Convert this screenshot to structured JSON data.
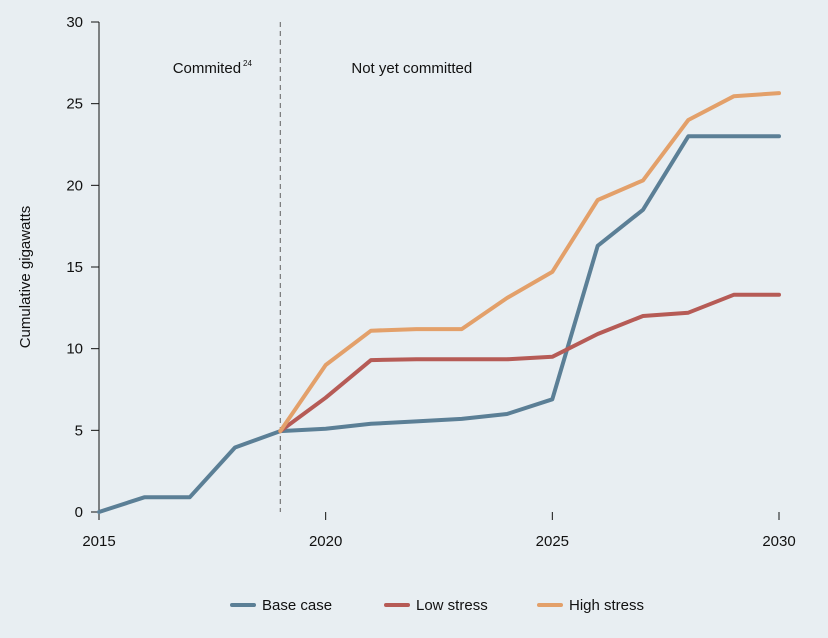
{
  "chart_data": {
    "type": "line",
    "title": "",
    "xlabel": "",
    "ylabel": "Cumulative gigawatts",
    "xlim": [
      2015,
      2030
    ],
    "ylim": [
      0,
      30
    ],
    "x_ticks": [
      "2015",
      "2020",
      "2025",
      "2030"
    ],
    "y_ticks": [
      "0",
      "5",
      "10",
      "15",
      "20",
      "25",
      "30"
    ],
    "grid": false,
    "legend_position": "bottom",
    "divider_x": 2019,
    "annotations": [
      {
        "label": "Commited",
        "superscript": "24",
        "x": 2017.5
      },
      {
        "label": "Not yet committed",
        "x": 2021.9
      }
    ],
    "series": [
      {
        "name": "Base case",
        "color": "#5b7f96",
        "x": [
          2015,
          2016,
          2017,
          2018,
          2019,
          2020,
          2021,
          2022,
          2023,
          2024,
          2025,
          2026,
          2027,
          2028,
          2029,
          2030
        ],
        "values": [
          0,
          0.9,
          0.9,
          3.95,
          4.95,
          5.1,
          5.4,
          5.55,
          5.7,
          6.0,
          6.9,
          16.3,
          18.5,
          23.0,
          23.0,
          23.0
        ]
      },
      {
        "name": "Low stress",
        "color": "#b65b56",
        "x": [
          2019,
          2020,
          2021,
          2022,
          2023,
          2024,
          2025,
          2026,
          2027,
          2028,
          2029,
          2030
        ],
        "values": [
          4.95,
          7.0,
          9.3,
          9.35,
          9.35,
          9.35,
          9.5,
          10.9,
          12.0,
          12.2,
          13.3,
          13.3
        ]
      },
      {
        "name": "High stress",
        "color": "#e3a06a",
        "x": [
          2019,
          2020,
          2021,
          2022,
          2023,
          2024,
          2025,
          2026,
          2027,
          2028,
          2029,
          2030
        ],
        "values": [
          4.95,
          9.0,
          11.1,
          11.2,
          11.2,
          13.1,
          14.7,
          19.1,
          20.3,
          24.0,
          25.45,
          25.65
        ]
      }
    ]
  }
}
